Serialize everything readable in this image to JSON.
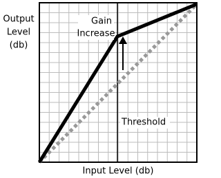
{
  "y_axis_label": [
    "Output",
    "Level",
    "(db)"
  ],
  "x_axis_label": "Input Level (db)",
  "gain_label": [
    "Gain",
    "Increase"
  ],
  "threshold_label": "Threshold"
}
